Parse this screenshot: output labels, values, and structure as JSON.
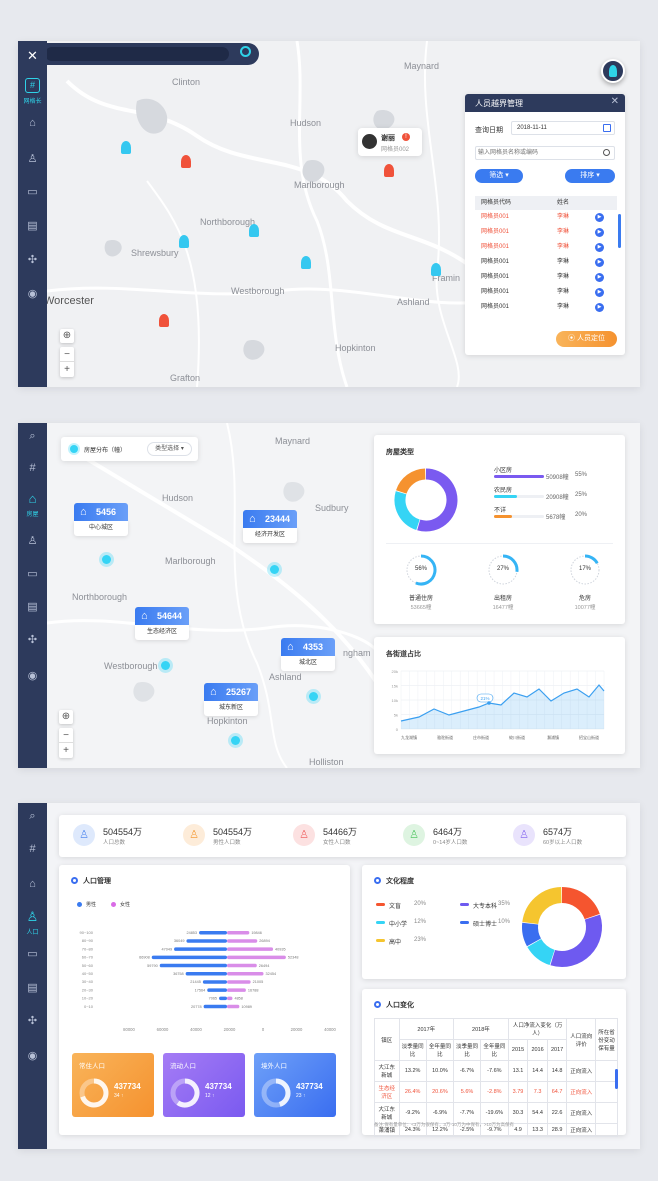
{
  "panel1": {
    "sidebar_label": "网格长",
    "map_labels": [
      "Clinton",
      "Maynard",
      "Hudson",
      "Marlborough",
      "Northborough",
      "Shrewsbury",
      "Worcester",
      "Westborough",
      "Ashland",
      "Framin",
      "Hopkinton",
      "Grafton"
    ],
    "person": {
      "name": "谢丽",
      "id": "网格员002"
    },
    "window": {
      "title": "人员越界管理",
      "date_label": "查询日期",
      "date_value": "2018-11-11",
      "search_placeholder": "输入网格员名称或编码",
      "filter_label": "筛选",
      "sort_label": "排序",
      "col_code": "网格员代码",
      "col_name": "姓名",
      "rows": [
        {
          "code": "网格员001",
          "name": "李琳",
          "alert": true
        },
        {
          "code": "网格员001",
          "name": "李琳",
          "alert": true
        },
        {
          "code": "网格员001",
          "name": "李琳",
          "alert": true
        },
        {
          "code": "网格员001",
          "name": "李琳",
          "alert": false
        },
        {
          "code": "网格员001",
          "name": "李琳",
          "alert": false
        },
        {
          "code": "网格员001",
          "name": "李琳",
          "alert": false
        },
        {
          "code": "网格员001",
          "name": "李琳",
          "alert": false
        }
      ],
      "locate_label": "人员定位"
    }
  },
  "panel2": {
    "sidebar_label": "房屋",
    "legend_label": "房屋分布（幢）",
    "type_select": "类型选择",
    "map_labels": [
      "Maynard",
      "Hudson",
      "Sudbury",
      "Marlborough",
      "Northborough",
      "Westborough",
      "Ashland",
      "Hopkinton",
      "Holliston",
      "ngham"
    ],
    "bubbles": [
      {
        "value": "5456",
        "label": "中心城区"
      },
      {
        "value": "23444",
        "label": "经济开发区"
      },
      {
        "value": "54644",
        "label": "生态经济区"
      },
      {
        "value": "4353",
        "label": "城北区"
      },
      {
        "value": "25267",
        "label": "城东新区"
      }
    ],
    "house_type": {
      "title": "房屋类型",
      "items": [
        {
          "name": "小区房",
          "count": "50908幢",
          "pct": "55%",
          "color": "#7a5af0",
          "value": 55
        },
        {
          "name": "农民房",
          "count": "20908幢",
          "pct": "25%",
          "color": "#35d4f5",
          "value": 25
        },
        {
          "name": "不详",
          "count": "5678幢",
          "pct": "20%",
          "color": "#f5922f",
          "value": 20
        }
      ],
      "rings": [
        {
          "pct": "56%",
          "label": "普通住房",
          "count": "53665幢",
          "value": 56
        },
        {
          "pct": "27%",
          "label": "出租房",
          "count": "16477幢",
          "value": 27
        },
        {
          "pct": "17%",
          "label": "危房",
          "count": "10077幢",
          "value": 17
        }
      ]
    },
    "street_chart": {
      "title": "各街道占比",
      "callout": "21%",
      "y_ticks": [
        "20k",
        "15k",
        "10k",
        "5k",
        "0"
      ],
      "x_labels": [
        "九龙湖镇",
        "骆驼街道",
        "庄市街道",
        "蛟川街道",
        "澥浦镇",
        "招宝山街道"
      ]
    }
  },
  "panel3": {
    "sidebar_label": "人口",
    "stats": [
      {
        "value": "504554万",
        "label": "人口总数",
        "color": "#5b8ff0"
      },
      {
        "value": "504554万",
        "label": "男性人口数",
        "color": "#f5a142"
      },
      {
        "value": "54466万",
        "label": "女性人口数",
        "color": "#f06b6b"
      },
      {
        "value": "6464万",
        "label": "0~14岁人口数",
        "color": "#5bc96b"
      },
      {
        "value": "6574万",
        "label": "60岁以上人口数",
        "color": "#8f73f0"
      }
    ],
    "population": {
      "title": "人口管理",
      "legend_male": "男性",
      "legend_female": "女性",
      "ages": [
        "90~100",
        "80~90",
        "70~80",
        "60~70",
        "50~60",
        "40~50",
        "30~40",
        "20~30",
        "10~20",
        "0~10"
      ],
      "male": [
        24853,
        36049,
        47049,
        66908,
        59790,
        36758,
        21445,
        17564,
        7065,
        20778
      ],
      "female": [
        19846,
        26894,
        40935,
        52348,
        26494,
        32454,
        21005,
        16788,
        4858,
        10989
      ],
      "male_labels": [
        "24853",
        "36049",
        "47049",
        "66908",
        "59790",
        "36758",
        "21445",
        "17564",
        "7065",
        "20778"
      ],
      "female_labels": [
        "19846",
        "26894",
        "40935",
        "52348",
        "26494",
        "32454",
        "21005",
        "16788",
        "4858",
        "10989"
      ],
      "x_ticks": [
        "80000",
        "60000",
        "40000",
        "20000",
        "0",
        "20000",
        "40000",
        "60000"
      ],
      "cards": [
        {
          "title": "常住人口",
          "value": "437734",
          "delta": "34 ↑",
          "color1": "#f9b45a",
          "color2": "#f5922f",
          "fill": 0.7
        },
        {
          "title": "流动人口",
          "value": "437734",
          "delta": "12 ↑",
          "color1": "#a57cf5",
          "color2": "#7a5af0",
          "fill": 0.6
        },
        {
          "title": "境外人口",
          "value": "437734",
          "delta": "23 ↑",
          "color1": "#6ea0f8",
          "color2": "#3a6ef0",
          "fill": 0.45
        }
      ]
    },
    "culture": {
      "title": "文化程度",
      "items": [
        {
          "name": "文盲",
          "pct": "20%",
          "color": "#f5552f",
          "value": 20
        },
        {
          "name": "大专本科",
          "pct": "35%",
          "color": "#6e5af0",
          "value": 35
        },
        {
          "name": "中小学",
          "pct": "12%",
          "color": "#35d4f5",
          "value": 12
        },
        {
          "name": "硕士博士",
          "pct": "10%",
          "color": "#3a6ef0",
          "value": 10
        },
        {
          "name": "高中",
          "pct": "23%",
          "color": "#f5c52f",
          "value": 23
        }
      ]
    },
    "change": {
      "title": "人口变化",
      "h_region": "镇区",
      "h_2017": "2017年",
      "h_2018": "2018年",
      "h_change": "人口净流入变化（万人）",
      "h_flow": "人口流向评价",
      "h_last": "所在省份变动保有量",
      "h_sub": [
        "淡季量同比",
        "全年量同比",
        "淡季量同比",
        "全年量同比",
        "2015",
        "2016",
        "2017"
      ],
      "rows": [
        {
          "region": "大江东新城",
          "v": [
            "13.2%",
            "10.0%",
            "-6.7%",
            "-7.6%",
            "13.1",
            "14.4",
            "14.8"
          ],
          "flow": "正向流入",
          "hl": false
        },
        {
          "region": "生态经济区",
          "v": [
            "26.4%",
            "20.6%",
            "5.6%",
            "-2.8%",
            "3.79",
            "7.3",
            "64.7"
          ],
          "flow": "正向流入",
          "hl": true
        },
        {
          "region": "大江东新城",
          "v": [
            "-9.2%",
            "-6.9%",
            "-7.7%",
            "-19.6%",
            "30.3",
            "54.4",
            "22.6"
          ],
          "flow": "正向流入",
          "hl": false
        },
        {
          "region": "萧涌镇",
          "v": [
            "24.3%",
            "12.2%",
            "-2.5%",
            "-9.7%",
            "4.9",
            "13.3",
            "28.9"
          ],
          "flow": "正向流入",
          "hl": false
        }
      ],
      "note": "备注:保有量单位：<3万为很保有，3万-10万为中保有，>10万为高保有"
    }
  }
}
